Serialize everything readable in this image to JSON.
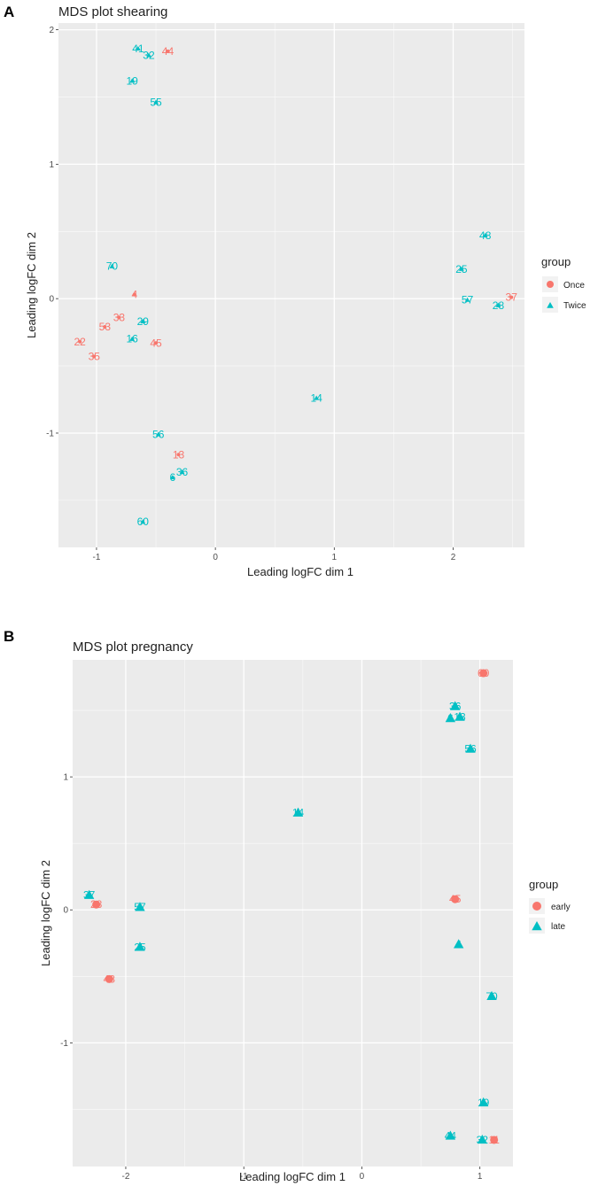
{
  "colors": {
    "group1": "#F8766D",
    "group2": "#00BFC4",
    "panel_bg": "#EBEBEB",
    "grid": "#FFFFFF"
  },
  "chart_data": [
    {
      "panel": "A",
      "type": "scatter",
      "title": "MDS plot shearing",
      "xlabel": "Leading logFC dim 1",
      "ylabel": "Leading logFC dim 2",
      "xlim": [
        -1.32,
        2.6
      ],
      "ylim": [
        -1.85,
        2.05
      ],
      "xticks": [
        -1,
        0,
        1,
        2
      ],
      "yticks": [
        -1,
        0,
        1,
        2
      ],
      "legend_title": "group",
      "legend_position": "right",
      "groups": [
        "Once",
        "Twice"
      ],
      "points": [
        {
          "label": "41",
          "x": -0.65,
          "y": 1.86,
          "group": "Twice"
        },
        {
          "label": "32",
          "x": -0.56,
          "y": 1.81,
          "group": "Twice"
        },
        {
          "label": "44",
          "x": -0.4,
          "y": 1.84,
          "group": "Once"
        },
        {
          "label": "19",
          "x": -0.7,
          "y": 1.62,
          "group": "Twice"
        },
        {
          "label": "55",
          "x": -0.5,
          "y": 1.46,
          "group": "Twice"
        },
        {
          "label": "70",
          "x": -0.87,
          "y": 0.24,
          "group": "Twice"
        },
        {
          "label": "4",
          "x": -0.68,
          "y": 0.03,
          "group": "Once"
        },
        {
          "label": "33",
          "x": -0.81,
          "y": -0.14,
          "group": "Once"
        },
        {
          "label": "53",
          "x": -0.93,
          "y": -0.21,
          "group": "Once"
        },
        {
          "label": "29",
          "x": -0.61,
          "y": -0.17,
          "group": "Twice"
        },
        {
          "label": "22",
          "x": -1.14,
          "y": -0.32,
          "group": "Once"
        },
        {
          "label": "16",
          "x": -0.7,
          "y": -0.3,
          "group": "Twice"
        },
        {
          "label": "45",
          "x": -0.5,
          "y": -0.33,
          "group": "Once"
        },
        {
          "label": "35",
          "x": -1.02,
          "y": -0.43,
          "group": "Once"
        },
        {
          "label": "48",
          "x": 2.27,
          "y": 0.47,
          "group": "Twice"
        },
        {
          "label": "25",
          "x": 2.07,
          "y": 0.22,
          "group": "Twice"
        },
        {
          "label": "57",
          "x": 2.12,
          "y": -0.01,
          "group": "Twice"
        },
        {
          "label": "37",
          "x": 2.49,
          "y": 0.01,
          "group": "Once"
        },
        {
          "label": "28",
          "x": 2.38,
          "y": -0.05,
          "group": "Twice"
        },
        {
          "label": "14",
          "x": 0.85,
          "y": -0.74,
          "group": "Twice"
        },
        {
          "label": "56",
          "x": -0.48,
          "y": -1.01,
          "group": "Twice"
        },
        {
          "label": "13",
          "x": -0.31,
          "y": -1.16,
          "group": "Once"
        },
        {
          "label": "36",
          "x": -0.28,
          "y": -1.29,
          "group": "Twice"
        },
        {
          "label": "6",
          "x": -0.36,
          "y": -1.33,
          "group": "Twice"
        },
        {
          "label": "60",
          "x": -0.61,
          "y": -1.66,
          "group": "Twice"
        }
      ]
    },
    {
      "panel": "B",
      "type": "scatter",
      "title": "MDS plot pregnancy",
      "xlabel": "Leading logFC dim 1",
      "ylabel": "Leading logFC dim 2",
      "xlim": [
        -2.45,
        1.28
      ],
      "ylim": [
        -1.93,
        1.88
      ],
      "xticks": [
        -2,
        -1,
        0,
        1
      ],
      "yticks": [
        -1,
        0,
        1
      ],
      "legend_title": "group",
      "legend_position": "right",
      "groups": [
        "early",
        "late"
      ],
      "points": [
        {
          "label": "60",
          "x": 1.03,
          "y": 1.78,
          "group": "early"
        },
        {
          "label": "36",
          "x": 0.79,
          "y": 1.53,
          "group": "late"
        },
        {
          "label": "6",
          "x": 0.75,
          "y": 1.44,
          "group": "late"
        },
        {
          "label": "13",
          "x": 0.83,
          "y": 1.45,
          "group": "late"
        },
        {
          "label": "56",
          "x": 0.92,
          "y": 1.21,
          "group": "late"
        },
        {
          "label": "14",
          "x": -0.54,
          "y": 0.73,
          "group": "late"
        },
        {
          "label": "37",
          "x": -2.31,
          "y": 0.11,
          "group": "late"
        },
        {
          "label": "28",
          "x": -2.25,
          "y": 0.04,
          "group": "early"
        },
        {
          "label": "57",
          "x": -1.88,
          "y": 0.02,
          "group": "late"
        },
        {
          "label": "25",
          "x": -1.88,
          "y": -0.28,
          "group": "late"
        },
        {
          "label": "48",
          "x": -2.14,
          "y": -0.52,
          "group": "early"
        },
        {
          "label": "45",
          "x": 0.79,
          "y": 0.08,
          "group": "early"
        },
        {
          "label": "4",
          "x": 0.82,
          "y": -0.26,
          "group": "late"
        },
        {
          "label": "70",
          "x": 1.1,
          "y": -0.65,
          "group": "late"
        },
        {
          "label": "19",
          "x": 1.03,
          "y": -1.45,
          "group": "late"
        },
        {
          "label": "44",
          "x": 0.75,
          "y": -1.7,
          "group": "late"
        },
        {
          "label": "32",
          "x": 1.02,
          "y": -1.73,
          "group": "late"
        },
        {
          "label": "11",
          "x": 1.12,
          "y": -1.73,
          "group": "early"
        }
      ]
    }
  ]
}
